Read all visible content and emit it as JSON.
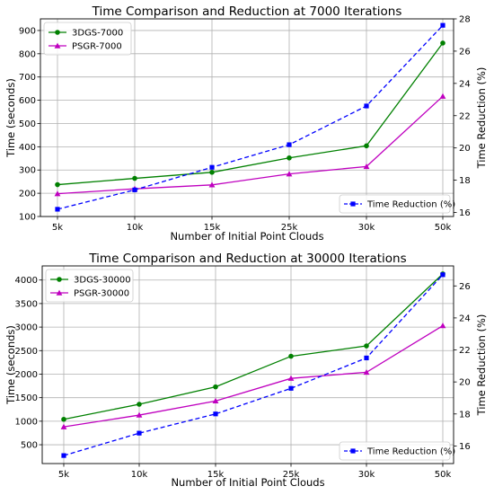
{
  "chart_data": [
    {
      "type": "line",
      "title": "Time Comparison and Reduction at 7000 Iterations",
      "xlabel": "Number of Initial Point Clouds",
      "ylabel": "Time (seconds)",
      "ylabel_right": "Time Reduction (%)",
      "categories": [
        "5k",
        "10k",
        "15k",
        "25k",
        "30k",
        "50k"
      ],
      "ylim": [
        100,
        950
      ],
      "yticks": [
        100,
        200,
        300,
        400,
        500,
        600,
        700,
        800,
        900
      ],
      "ylim_right": [
        15.75,
        28.0
      ],
      "yticks_right": [
        16,
        18,
        20,
        22,
        24,
        26,
        28
      ],
      "grid": true,
      "series": [
        {
          "name": "3DGS-7000",
          "values": [
            237,
            264,
            290,
            352,
            404,
            846
          ],
          "color": "#008000",
          "marker": "circle",
          "axis": "left",
          "dash": false
        },
        {
          "name": "PSGR-7000",
          "values": [
            198,
            219,
            236,
            283,
            315,
            617
          ],
          "color": "#bf00bf",
          "marker": "triangle",
          "axis": "left",
          "dash": false
        }
      ],
      "right_series": [
        {
          "name": "Time Reduction (%)",
          "values": [
            16.2,
            17.4,
            18.8,
            20.2,
            22.6,
            27.6
          ],
          "color": "#0000ff",
          "marker": "square",
          "axis": "right",
          "dash": true
        }
      ],
      "legend_left_placement": "upper-left",
      "legend_right_placement": "lower-right"
    },
    {
      "type": "line",
      "title": "Time Comparison and Reduction at 30000 Iterations",
      "xlabel": "Number of Initial Point Clouds",
      "ylabel": "Time (seconds)",
      "ylabel_right": "Time Reduction (%)",
      "categories": [
        "5k",
        "10k",
        "15k",
        "25k",
        "30k",
        "50k"
      ],
      "ylim": [
        100,
        4300
      ],
      "yticks": [
        500,
        1000,
        1500,
        2000,
        2500,
        3000,
        3500,
        4000
      ],
      "ylim_right": [
        14.9,
        27.25
      ],
      "yticks_right": [
        16,
        18,
        20,
        22,
        24,
        26
      ],
      "grid": true,
      "series": [
        {
          "name": "3DGS-30000",
          "values": [
            1040,
            1360,
            1730,
            2380,
            2600,
            4130
          ],
          "color": "#008000",
          "marker": "circle",
          "axis": "left",
          "dash": false
        },
        {
          "name": "PSGR-30000",
          "values": [
            880,
            1130,
            1430,
            1910,
            2040,
            3030
          ],
          "color": "#bf00bf",
          "marker": "triangle",
          "axis": "left",
          "dash": false
        }
      ],
      "right_series": [
        {
          "name": "Time Reduction (%)",
          "values": [
            15.4,
            16.8,
            18.0,
            19.6,
            21.5,
            26.7
          ],
          "color": "#0000ff",
          "marker": "square",
          "axis": "right",
          "dash": true
        }
      ],
      "legend_left_placement": "upper-left",
      "legend_right_placement": "lower-right"
    }
  ]
}
